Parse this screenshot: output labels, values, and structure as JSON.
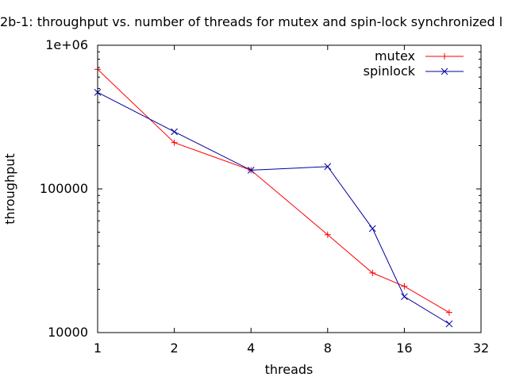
{
  "chart_data": {
    "type": "line",
    "title": "2b-1: throughput vs. number of threads for mutex and spin-lock synchronized l",
    "xlabel": "threads",
    "ylabel": "throughput",
    "x_scale": "log2",
    "y_scale": "log10",
    "xlim": [
      1,
      32
    ],
    "ylim": [
      10000,
      1000000
    ],
    "x_ticks": [
      {
        "value": 1,
        "label": "1"
      },
      {
        "value": 2,
        "label": "2"
      },
      {
        "value": 4,
        "label": "4"
      },
      {
        "value": 8,
        "label": "8"
      },
      {
        "value": 16,
        "label": "16"
      },
      {
        "value": 32,
        "label": "32"
      }
    ],
    "y_ticks": [
      {
        "value": 10000,
        "label": "10000"
      },
      {
        "value": 100000,
        "label": "100000"
      },
      {
        "value": 1000000,
        "label": "1e+06"
      }
    ],
    "legend_position": "top-right",
    "series": [
      {
        "name": "mutex",
        "color": "#ff0000",
        "marker": "plus",
        "x": [
          1,
          2,
          4,
          8,
          12,
          16,
          24
        ],
        "y": [
          680000,
          210000,
          135000,
          48000,
          26000,
          21000,
          13800
        ]
      },
      {
        "name": "spinlock",
        "color": "#0000a0",
        "marker": "cross",
        "x": [
          1,
          2,
          4,
          8,
          12,
          16,
          24
        ],
        "y": [
          470000,
          250000,
          135000,
          143000,
          53000,
          17800,
          11500
        ]
      }
    ]
  }
}
